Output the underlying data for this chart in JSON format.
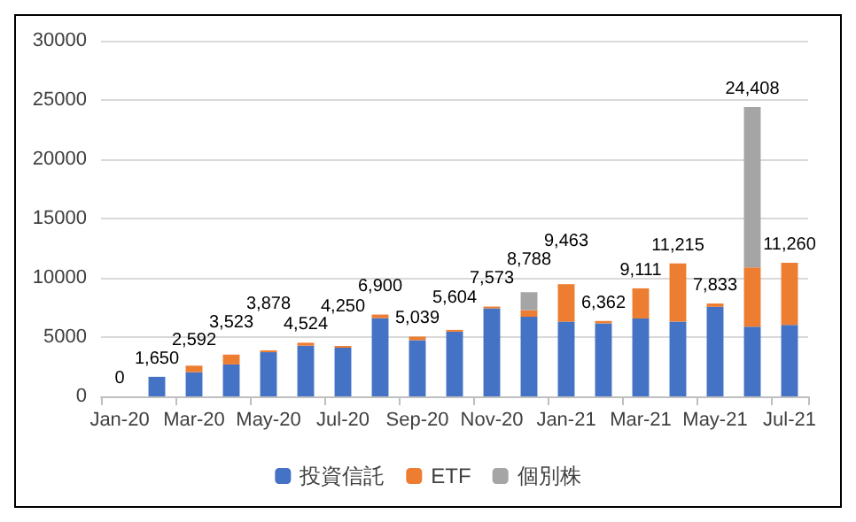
{
  "chart_data": {
    "type": "bar",
    "stacked": true,
    "categories": [
      "Jan-20",
      null,
      "Mar-20",
      null,
      "May-20",
      null,
      "Jul-20",
      null,
      "Sep-20",
      null,
      "Nov-20",
      null,
      "Jan-21",
      null,
      "Mar-21",
      null,
      "May-21",
      null,
      "Jul-21"
    ],
    "series": [
      {
        "name": "投資信託",
        "color": "#4472c4",
        "values": [
          0,
          1650,
          2040,
          2693,
          3728,
          4274,
          4100,
          6600,
          4739,
          5454,
          7423,
          6710,
          6300,
          6160,
          6570,
          6300,
          7550,
          5880,
          6020
        ]
      },
      {
        "name": "ETF",
        "color": "#ed7d31",
        "values": [
          0,
          0,
          550,
          830,
          150,
          250,
          150,
          300,
          300,
          150,
          150,
          560,
          3163,
          200,
          2541,
          4915,
          283,
          5000,
          5240
        ]
      },
      {
        "name": "個別株",
        "color": "#a5a5a5",
        "values": [
          null,
          null,
          null,
          null,
          null,
          null,
          null,
          null,
          null,
          null,
          null,
          1518,
          null,
          null,
          null,
          null,
          null,
          13528,
          null
        ]
      }
    ],
    "totals": [
      "0",
      "1,650",
      "2,592",
      "3,523",
      "3,878",
      "4,524",
      "4,250",
      "6,900",
      "5,039",
      "5,604",
      "7,573",
      "8,788",
      "9,463",
      "6,362",
      "9,111",
      "11,215",
      "7,833",
      "24,408",
      "11,260"
    ],
    "ylim": [
      0,
      30000
    ],
    "yticks": [
      0,
      5000,
      10000,
      15000,
      20000,
      25000,
      30000
    ],
    "grid": "y",
    "legend": "bottom"
  }
}
